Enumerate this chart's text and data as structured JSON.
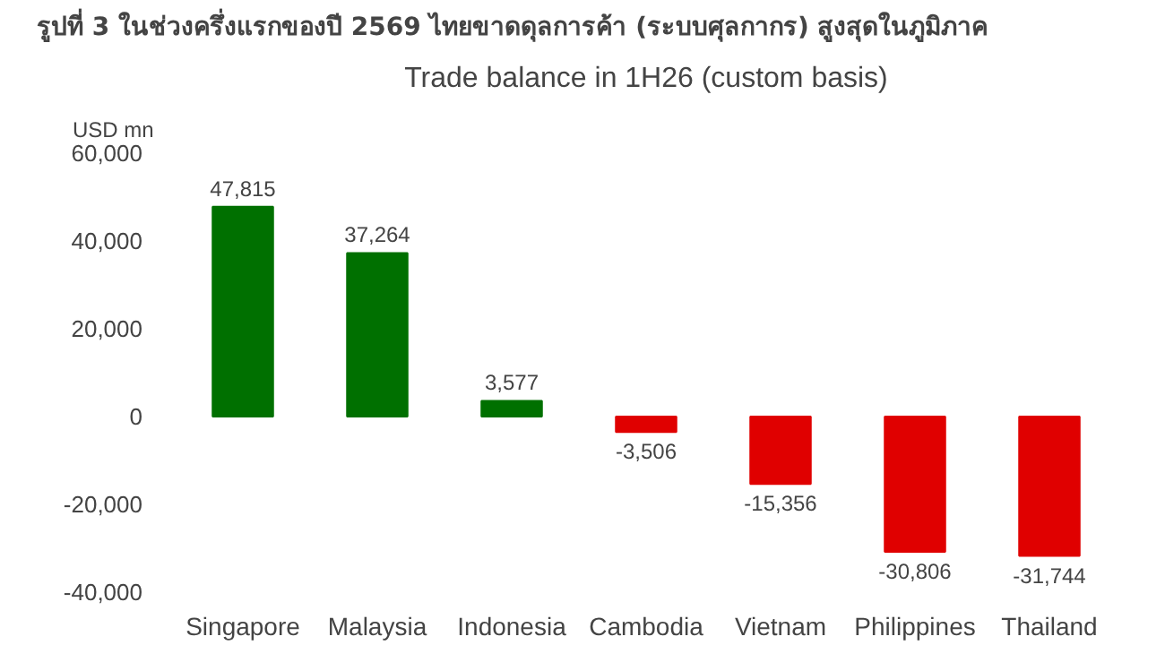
{
  "chart_data": {
    "type": "bar",
    "title": "รูปที่ 3 ในช่วงครึ่งแรกของปี 2569 ไทยขาดดุลการค้า (ระบบศุลกากร) สูงสุดในภูมิภาค",
    "subtitle": "Trade balance in 1H26 (custom basis)",
    "ylabel": "USD mn",
    "categories": [
      "Singapore",
      "Malaysia",
      "Indonesia",
      "Cambodia",
      "Vietnam",
      "Philippines",
      "Thailand"
    ],
    "values": [
      47815,
      37264,
      3577,
      -3506,
      -15356,
      -30806,
      -31744
    ],
    "colors": [
      "#007000",
      "#007000",
      "#007000",
      "#e00000",
      "#e00000",
      "#e00000",
      "#e00000"
    ],
    "value_labels": [
      "47,815",
      "37,264",
      "3,577",
      "-3,506",
      "-15,356",
      "-30,806",
      "-31,744"
    ],
    "ylim": [
      -40000,
      60000
    ],
    "yticks": [
      {
        "value": -40000,
        "label": "-40,000"
      },
      {
        "value": -20000,
        "label": "-20,000"
      },
      0,
      {
        "value": 20000,
        "label": "20,000"
      },
      {
        "value": 40000,
        "label": "40,000"
      },
      {
        "value": 60000,
        "label": "60,000"
      }
    ],
    "grid": false
  }
}
